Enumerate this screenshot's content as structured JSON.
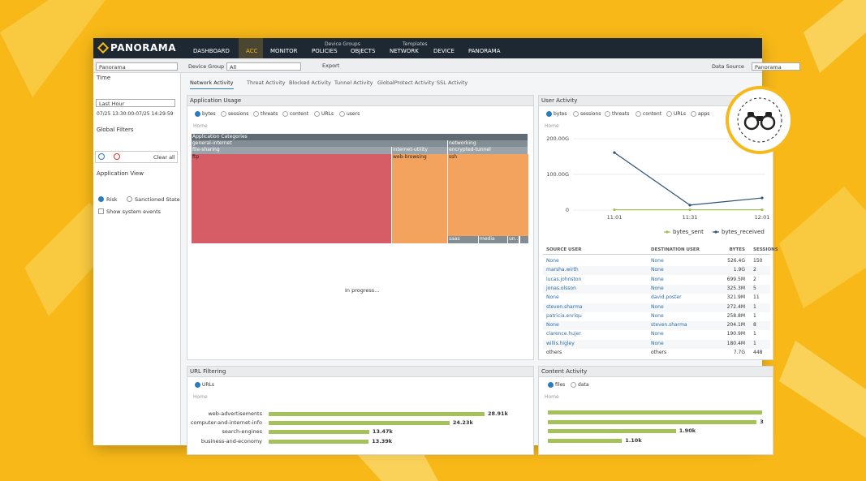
{
  "brand": "PANORAMA",
  "nav": [
    {
      "label": "DASHBOARD"
    },
    {
      "label": "ACC"
    },
    {
      "label": "MONITOR"
    },
    {
      "label": "POLICIES",
      "group": "Device Groups"
    },
    {
      "label": "OBJECTS"
    },
    {
      "label": "NETWORK",
      "group": "Templates"
    },
    {
      "label": "DEVICE"
    },
    {
      "label": "PANORAMA"
    }
  ],
  "toolbar": {
    "context": "Panorama",
    "device_group_label": "Device Group",
    "device_group_value": "All",
    "export": "Export",
    "data_source_label": "Data Source",
    "data_source_value": "Panorama"
  },
  "sidebar": {
    "time": "Time",
    "time_value": "Last Hour",
    "time_range": "07/25 13:30:00-07/25 14:29:59",
    "global_filters": "Global Filters",
    "clear_all": "Clear all",
    "application_view": "Application View",
    "risk": "Risk",
    "sanctioned_state": "Sanctioned State",
    "show_system_events": "Show system events"
  },
  "tabs": [
    "Network Activity",
    "Threat Activity",
    "Blocked Activity",
    "Tunnel Activity",
    "GlobalProtect Activity",
    "SSL Activity"
  ],
  "application_usage": {
    "title": "Application Usage",
    "options": [
      "bytes",
      "sessions",
      "threats",
      "content",
      "URLs",
      "users"
    ],
    "home": "Home",
    "treemap": {
      "root": "Application Categories",
      "groups": [
        "general-internet",
        "networking"
      ],
      "subgroups": [
        "file-sharing",
        "internet-utility",
        "encrypted-tunnel"
      ],
      "apps": [
        "ftp",
        "web-browsing",
        "ssh"
      ],
      "small": [
        "saas",
        "media",
        "un..."
      ]
    },
    "status": "In progress..."
  },
  "user_activity": {
    "title": "User Activity",
    "options": [
      "bytes",
      "sessions",
      "threats",
      "content",
      "URLs",
      "apps"
    ],
    "home": "Home",
    "chart": {
      "type": "line",
      "x": [
        "11:01",
        "11:31",
        "12:01"
      ],
      "ylim": [
        0,
        200
      ],
      "yticks": [
        {
          "value": 0,
          "label": "0"
        },
        {
          "value": 100,
          "label": "100.00G"
        },
        {
          "value": 200,
          "label": "200.00G"
        }
      ],
      "series": [
        {
          "name": "bytes_sent",
          "color": "#9cc14f",
          "values": [
            1,
            1,
            1
          ]
        },
        {
          "name": "bytes_received",
          "color": "#2d5478",
          "values": [
            161,
            14,
            34
          ]
        }
      ]
    },
    "table": {
      "columns": [
        "SOURCE USER",
        "DESTINATION USER",
        "BYTES",
        "SESSIONS"
      ],
      "rows": [
        [
          "None",
          "None",
          "526.4G",
          "150"
        ],
        [
          "marsha.wirth",
          "None",
          "1.9G",
          "2"
        ],
        [
          "lucas.johnston",
          "None",
          "699.5M",
          "2"
        ],
        [
          "jonas.olsson",
          "None",
          "325.3M",
          "5"
        ],
        [
          "None",
          "david.poster",
          "321.9M",
          "11"
        ],
        [
          "steven.sharma",
          "None",
          "272.4M",
          "1"
        ],
        [
          "patricia.enriqu",
          "None",
          "258.8M",
          "1"
        ],
        [
          "None",
          "steven.sharma",
          "204.1M",
          "8"
        ],
        [
          "clarence.hujer",
          "None",
          "190.9M",
          "1"
        ],
        [
          "willis.higley",
          "None",
          "180.4M",
          "1"
        ],
        [
          "others",
          "others",
          "7.7G",
          "448"
        ]
      ]
    }
  },
  "url_filtering": {
    "title": "URL Filtering",
    "options": [
      "URLs"
    ],
    "home": "Home",
    "chart": {
      "type": "bar",
      "categories": [
        "web-advertisements",
        "computer-and-internet-info",
        "search-engines",
        "business-and-economy"
      ],
      "values": [
        28.91,
        24.23,
        13.47,
        13.39
      ],
      "value_labels": [
        "28.91k",
        "24.23k",
        "13.47k",
        "13.39k"
      ],
      "color": "#a5c25a"
    }
  },
  "content_activity": {
    "title": "Content Activity",
    "options": [
      "files",
      "data"
    ],
    "home": "Home",
    "chart": {
      "type": "bar",
      "values": [
        3.1,
        1.9,
        1.1
      ],
      "value_labels": [
        "3",
        "1.90k",
        "1.10k"
      ],
      "color": "#a5c25a"
    }
  }
}
